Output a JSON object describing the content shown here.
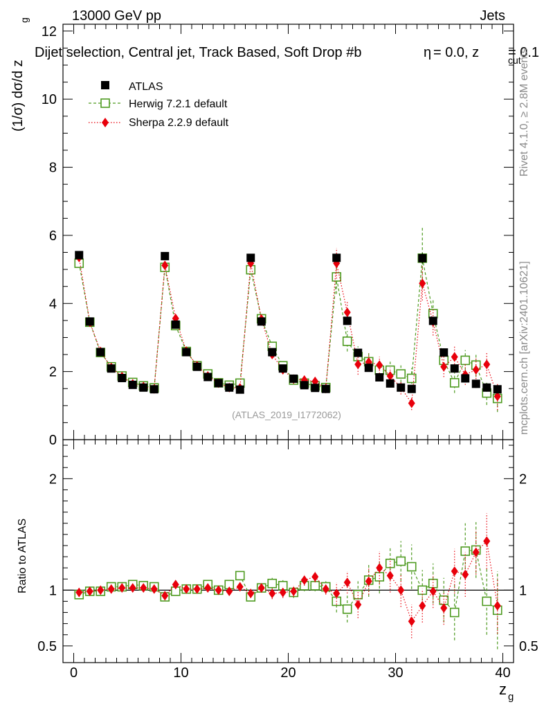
{
  "header": {
    "left": "13000 GeV pp",
    "right": "Jets",
    "selection": "Dijet selection, Central jet, Track Based, Soft Drop #b",
    "selection_params": "= 0.0, z",
    "zcut_sub": "cut",
    "zcut_val": "= 0.1",
    "beta_symbol": "η",
    "side_rivet": "Rivet 4.1.0, ≥ 2.8M events",
    "side_mcplots": "mcplots.cern.ch [arXiv:2401.10621]",
    "analysis_id": "(ATLAS_2019_I1772062)"
  },
  "colors": {
    "atlas": "#000000",
    "herwig": "#4d9a1f",
    "sherpa": "#e8000b"
  },
  "chart_data": [
    {
      "type": "scatter",
      "panel": "main",
      "ylabel": "(1/σ) dσ/d z",
      "ylabel_sub": "g",
      "xlim": [
        -1,
        41
      ],
      "ylim": [
        0,
        12.2
      ],
      "yticks": [
        "0",
        "2",
        "4",
        "6",
        "8",
        "10",
        "12"
      ],
      "x": [
        0.5,
        1.5,
        2.5,
        3.5,
        4.5,
        5.5,
        6.5,
        7.5,
        8.5,
        9.5,
        10.5,
        11.5,
        12.5,
        13.5,
        14.5,
        15.5,
        16.5,
        17.5,
        18.5,
        19.5,
        20.5,
        21.5,
        22.5,
        23.5,
        24.5,
        25.5,
        26.5,
        27.5,
        28.5,
        29.5,
        30.5,
        31.5,
        32.5,
        33.5,
        34.5,
        35.5,
        36.5,
        37.5,
        38.5,
        39.5
      ],
      "legend": [
        "ATLAS",
        "Herwig 7.2.1 default",
        "Sherpa 2.2.9 default"
      ],
      "series": [
        {
          "name": "ATLAS",
          "marker": "square-filled",
          "values": [
            5.42,
            3.47,
            2.57,
            2.09,
            1.81,
            1.61,
            1.53,
            1.48,
            5.39,
            3.38,
            2.57,
            2.14,
            1.84,
            1.66,
            1.53,
            1.47,
            5.34,
            3.47,
            2.57,
            2.09,
            1.79,
            1.6,
            1.52,
            1.49,
            5.34,
            3.49,
            2.55,
            2.11,
            1.83,
            1.65,
            1.53,
            1.49,
            5.33,
            3.49,
            2.56,
            2.09,
            1.8,
            1.64,
            1.53,
            1.48
          ],
          "errors": [
            0.05,
            0.04,
            0.03,
            0.03,
            0.03,
            0.03,
            0.03,
            0.03,
            0.06,
            0.05,
            0.04,
            0.04,
            0.04,
            0.04,
            0.04,
            0.04,
            0.07,
            0.06,
            0.05,
            0.05,
            0.05,
            0.05,
            0.05,
            0.05,
            0.1,
            0.08,
            0.08,
            0.08,
            0.08,
            0.08,
            0.08,
            0.08,
            0.15,
            0.12,
            0.12,
            0.12,
            0.12,
            0.12,
            0.12,
            0.12
          ]
        },
        {
          "name": "Herwig 7.2.1 default",
          "marker": "square-open",
          "values": [
            5.18,
            3.45,
            2.56,
            2.14,
            1.87,
            1.68,
            1.58,
            1.52,
            5.06,
            3.35,
            2.59,
            2.17,
            1.93,
            1.67,
            1.6,
            1.66,
            4.99,
            3.55,
            2.74,
            2.17,
            1.75,
            1.66,
            1.58,
            1.53,
            4.78,
            2.89,
            2.44,
            2.29,
            2.04,
            2.04,
            1.93,
            1.8,
            5.33,
            3.7,
            2.33,
            1.67,
            2.33,
            2.19,
            1.37,
            1.21
          ],
          "errors": [
            0.05,
            0.04,
            0.04,
            0.04,
            0.04,
            0.04,
            0.04,
            0.04,
            0.06,
            0.05,
            0.05,
            0.05,
            0.05,
            0.05,
            0.05,
            0.05,
            0.1,
            0.1,
            0.1,
            0.1,
            0.1,
            0.1,
            0.1,
            0.1,
            0.5,
            0.3,
            0.3,
            0.25,
            0.25,
            0.25,
            0.25,
            0.3,
            0.9,
            0.4,
            0.3,
            0.3,
            0.3,
            0.35,
            0.35,
            0.4
          ]
        },
        {
          "name": "Sherpa 2.2.9 default",
          "marker": "diamond",
          "values": [
            5.35,
            3.45,
            2.59,
            2.12,
            1.85,
            1.64,
            1.56,
            1.49,
            5.12,
            3.56,
            2.6,
            2.17,
            1.87,
            1.66,
            1.53,
            1.52,
            5.18,
            3.54,
            2.5,
            2.05,
            1.78,
            1.75,
            1.71,
            1.5,
            5.18,
            3.74,
            2.21,
            2.28,
            2.19,
            1.87,
            1.53,
            1.07,
            4.59,
            3.46,
            2.14,
            2.43,
            1.91,
            2.05,
            2.21,
            1.27
          ],
          "errors": [
            0.05,
            0.04,
            0.04,
            0.04,
            0.04,
            0.04,
            0.04,
            0.04,
            0.08,
            0.06,
            0.06,
            0.06,
            0.06,
            0.06,
            0.06,
            0.06,
            0.12,
            0.1,
            0.1,
            0.1,
            0.1,
            0.1,
            0.1,
            0.1,
            0.45,
            0.3,
            0.3,
            0.25,
            0.25,
            0.25,
            0.2,
            0.2,
            0.5,
            0.4,
            0.3,
            0.3,
            0.3,
            0.35,
            0.35,
            0.4
          ]
        }
      ]
    },
    {
      "type": "scatter",
      "panel": "ratio",
      "ylabel": "Ratio to ATLAS",
      "xlabel": "z",
      "xlabel_sub": "g",
      "xlim": [
        -1,
        41
      ],
      "ylim": [
        0.35,
        2.35
      ],
      "xticks": [
        "0",
        "10",
        "20",
        "30",
        "40"
      ],
      "yticks": [
        "0.5",
        "1",
        "2"
      ],
      "x": [
        0.5,
        1.5,
        2.5,
        3.5,
        4.5,
        5.5,
        6.5,
        7.5,
        8.5,
        9.5,
        10.5,
        11.5,
        12.5,
        13.5,
        14.5,
        15.5,
        16.5,
        17.5,
        18.5,
        19.5,
        20.5,
        21.5,
        22.5,
        23.5,
        24.5,
        25.5,
        26.5,
        27.5,
        28.5,
        29.5,
        30.5,
        31.5,
        32.5,
        33.5,
        34.5,
        35.5,
        36.5,
        37.5,
        38.5,
        39.5
      ],
      "series": [
        {
          "name": "Herwig 7.2.1 default",
          "values": [
            0.96,
            0.99,
            0.99,
            1.03,
            1.03,
            1.05,
            1.04,
            1.03,
            0.94,
            0.99,
            1.01,
            1.01,
            1.05,
            1.0,
            1.05,
            1.13,
            0.94,
            1.02,
            1.06,
            1.04,
            0.98,
            1.04,
            1.04,
            1.03,
            0.9,
            0.83,
            0.96,
            1.09,
            1.12,
            1.24,
            1.26,
            1.21,
            1.0,
            1.06,
            0.91,
            0.8,
            1.35,
            1.36,
            0.9,
            0.82
          ],
          "errors": [
            0.02,
            0.02,
            0.02,
            0.02,
            0.02,
            0.02,
            0.02,
            0.02,
            0.02,
            0.02,
            0.03,
            0.03,
            0.03,
            0.03,
            0.03,
            0.03,
            0.04,
            0.04,
            0.05,
            0.05,
            0.05,
            0.05,
            0.05,
            0.05,
            0.1,
            0.12,
            0.12,
            0.15,
            0.15,
            0.15,
            0.18,
            0.2,
            0.18,
            0.18,
            0.2,
            0.25,
            0.25,
            0.25,
            0.3,
            0.35
          ]
        },
        {
          "name": "Sherpa 2.2.9 default",
          "values": [
            0.98,
            0.99,
            1.0,
            1.01,
            1.02,
            1.02,
            1.02,
            1.01,
            0.95,
            1.05,
            1.01,
            1.01,
            1.02,
            1.0,
            0.99,
            1.03,
            0.97,
            1.02,
            0.97,
            0.98,
            0.99,
            1.09,
            1.12,
            1.01,
            0.97,
            1.07,
            0.87,
            1.08,
            1.2,
            1.13,
            1.0,
            0.72,
            0.86,
            0.99,
            0.84,
            1.17,
            1.14,
            1.34,
            1.44,
            0.86
          ],
          "errors": [
            0.02,
            0.02,
            0.02,
            0.02,
            0.02,
            0.02,
            0.02,
            0.02,
            0.03,
            0.03,
            0.03,
            0.03,
            0.03,
            0.03,
            0.03,
            0.03,
            0.04,
            0.04,
            0.05,
            0.05,
            0.05,
            0.05,
            0.05,
            0.05,
            0.1,
            0.1,
            0.12,
            0.12,
            0.15,
            0.15,
            0.15,
            0.15,
            0.15,
            0.15,
            0.15,
            0.2,
            0.2,
            0.2,
            0.25,
            0.25
          ]
        }
      ]
    }
  ]
}
